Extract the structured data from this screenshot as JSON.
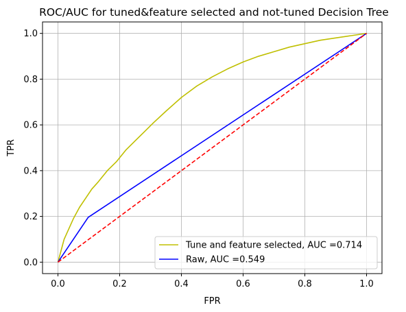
{
  "chart_data": {
    "type": "line",
    "title": "ROC/AUC for tuned&feature selected and not-tuned Decision Tree",
    "xlabel": "FPR",
    "ylabel": "TPR",
    "xlim": [
      -0.05,
      1.05
    ],
    "ylim": [
      -0.05,
      1.05
    ],
    "xticks": [
      0.0,
      0.2,
      0.4,
      0.6,
      0.8,
      1.0
    ],
    "yticks": [
      0.0,
      0.2,
      0.4,
      0.6,
      0.8,
      1.0
    ],
    "xtick_labels": [
      "0.0",
      "0.2",
      "0.4",
      "0.6",
      "0.8",
      "1.0"
    ],
    "ytick_labels": [
      "0.0",
      "0.2",
      "0.4",
      "0.6",
      "0.8",
      "1.0"
    ],
    "grid": true,
    "legend_position": "lower-right",
    "series": [
      {
        "name": "Tune and feature selected, AUC =0.714",
        "color": "#bfbf00",
        "style": "solid",
        "x": [
          0.0,
          0.01,
          0.02,
          0.03,
          0.05,
          0.07,
          0.09,
          0.11,
          0.13,
          0.16,
          0.19,
          0.22,
          0.25,
          0.28,
          0.31,
          0.35,
          0.4,
          0.45,
          0.5,
          0.55,
          0.6,
          0.65,
          0.7,
          0.75,
          0.8,
          0.85,
          0.9,
          0.95,
          1.0
        ],
        "y": [
          0.0,
          0.05,
          0.1,
          0.13,
          0.19,
          0.24,
          0.28,
          0.32,
          0.35,
          0.4,
          0.44,
          0.49,
          0.53,
          0.57,
          0.61,
          0.66,
          0.72,
          0.77,
          0.81,
          0.845,
          0.875,
          0.9,
          0.92,
          0.94,
          0.955,
          0.97,
          0.98,
          0.99,
          1.0
        ]
      },
      {
        "name": "Raw, AUC =0.549",
        "color": "#0000ff",
        "style": "solid",
        "x": [
          0.0,
          0.098,
          1.0
        ],
        "y": [
          0.0,
          0.196,
          1.0
        ]
      },
      {
        "name": "",
        "color": "#ff0000",
        "style": "dashed",
        "x": [
          0.0,
          1.0
        ],
        "y": [
          0.0,
          1.0
        ]
      }
    ]
  }
}
